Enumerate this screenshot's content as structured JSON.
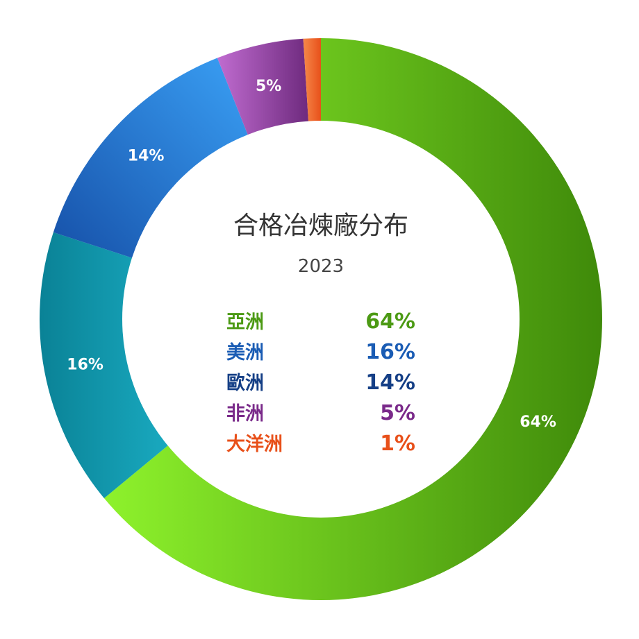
{
  "chart_data": {
    "type": "pie",
    "title": "合格冶煉廠分布",
    "subtitle": "2023",
    "categories": [
      "亞洲",
      "美洲",
      "歐洲",
      "非洲",
      "大洋洲"
    ],
    "values": [
      64,
      16,
      14,
      5,
      1
    ],
    "value_labels": [
      "64%",
      "16%",
      "14%",
      "5%",
      "1%"
    ],
    "colors": [
      "#5fb51c",
      "#0a8ea3",
      "#1f63bd",
      "#8a3596",
      "#f26522"
    ],
    "legend_colors": [
      "#4c9a14",
      "#1a5cb4",
      "#153f86",
      "#7a2a8a",
      "#e8501a"
    ],
    "donut": true,
    "legend_position": "center"
  }
}
